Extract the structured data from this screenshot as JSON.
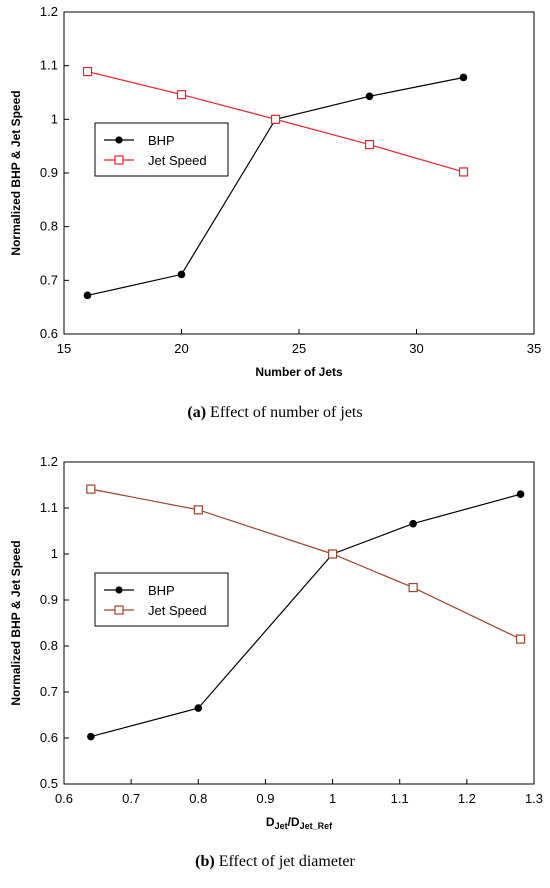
{
  "chart_data": [
    {
      "type": "line",
      "xlabel": "Number of Jets",
      "ylabel": "Normalized BHP & Jet Speed",
      "xlim": [
        15,
        35
      ],
      "ylim": [
        0.6,
        1.2
      ],
      "xticks": [
        "15",
        "20",
        "25",
        "30",
        "35"
      ],
      "yticks": [
        "0.6",
        "0.7",
        "0.8",
        "0.9",
        "1",
        "1.1",
        "1.2"
      ],
      "legend_position": "middle-left",
      "grid": false,
      "series": [
        {
          "name": "BHP",
          "color": "#000000",
          "marker": "filled-circle",
          "x": [
            16,
            20,
            24,
            28,
            32
          ],
          "y": [
            0.672,
            0.711,
            1.0,
            1.043,
            1.078
          ]
        },
        {
          "name": "Jet Speed",
          "color": "#e8202a",
          "marker": "open-square",
          "x": [
            16,
            20,
            24,
            28,
            32
          ],
          "y": [
            1.089,
            1.046,
            1.0,
            0.953,
            0.902
          ]
        }
      ],
      "caption_label": "(a)",
      "caption_text": "Effect of number of jets"
    },
    {
      "type": "line",
      "xlabel_main": "D",
      "xlabel_sub1": "Jet",
      "xlabel_sep": "/D",
      "xlabel_sub2": "Jet_Ref",
      "ylabel": "Normalized BHP & Jet Speed",
      "xlim": [
        0.6,
        1.3
      ],
      "ylim": [
        0.5,
        1.2
      ],
      "xticks": [
        "0.6",
        "0.7",
        "0.8",
        "0.9",
        "1",
        "1.1",
        "1.2",
        "1.3"
      ],
      "yticks": [
        "0.5",
        "0.6",
        "0.7",
        "0.8",
        "0.9",
        "1",
        "1.1",
        "1.2"
      ],
      "legend_position": "middle-left",
      "grid": false,
      "series": [
        {
          "name": "BHP",
          "color": "#000000",
          "marker": "filled-circle",
          "x": [
            0.64,
            0.8,
            1.0,
            1.12,
            1.28
          ],
          "y": [
            0.603,
            0.665,
            1.0,
            1.066,
            1.13
          ]
        },
        {
          "name": "Jet Speed",
          "color": "#a0432a",
          "marker": "open-square",
          "x": [
            0.64,
            0.8,
            1.0,
            1.12,
            1.28
          ],
          "y": [
            1.141,
            1.096,
            1.0,
            0.927,
            0.815
          ]
        }
      ],
      "caption_label": "(b)",
      "caption_text": "Effect of jet diameter"
    }
  ]
}
